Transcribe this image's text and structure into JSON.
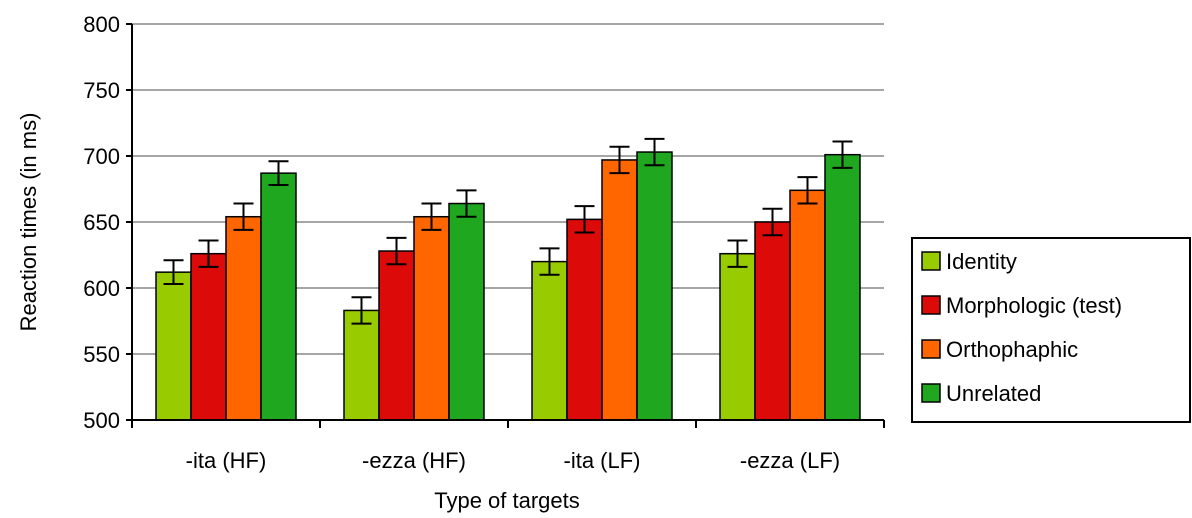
{
  "chart_data": {
    "type": "bar",
    "title": "",
    "xlabel": "Type of targets",
    "ylabel": "Reaction times (in ms)",
    "ylim": [
      500,
      800
    ],
    "yticks": [
      500,
      550,
      600,
      650,
      700,
      750,
      800
    ],
    "grid": true,
    "legend_position": "right",
    "categories": [
      "-ita (HF)",
      "-ezza (HF)",
      "-ita (LF)",
      "-ezza (LF)"
    ],
    "series": [
      {
        "name": "Identity",
        "color": "#99cc00",
        "values": [
          612,
          583,
          620,
          626
        ],
        "errors": [
          9,
          10,
          10,
          10
        ]
      },
      {
        "name": "Morphologic (test)",
        "color": "#dd0a0a",
        "values": [
          626,
          628,
          652,
          650
        ],
        "errors": [
          10,
          10,
          10,
          10
        ]
      },
      {
        "name": "Orthophaphic",
        "color": "#ff6600",
        "values": [
          654,
          654,
          697,
          674
        ],
        "errors": [
          10,
          10,
          10,
          10
        ]
      },
      {
        "name": "Unrelated",
        "color": "#1fa81f",
        "values": [
          687,
          664,
          703,
          701
        ],
        "errors": [
          9,
          10,
          10,
          10
        ]
      }
    ]
  }
}
